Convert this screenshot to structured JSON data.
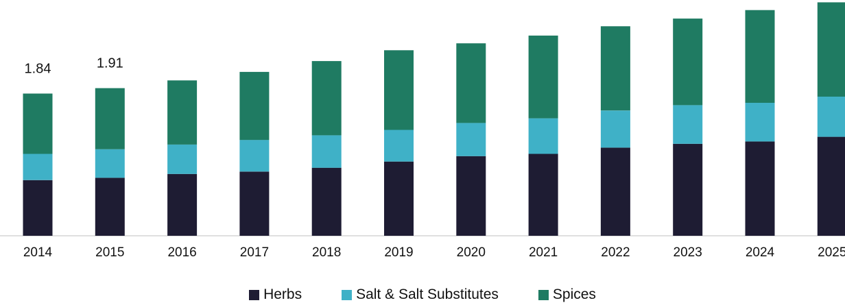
{
  "chart_data": {
    "type": "bar",
    "stacked": true,
    "title": "",
    "xlabel": "",
    "ylabel": "",
    "categories": [
      "2014",
      "2015",
      "2016",
      "2017",
      "2018",
      "2019",
      "2020",
      "2021",
      "2022",
      "2023",
      "2024",
      "2025"
    ],
    "series": [
      {
        "name": "Herbs",
        "color": "#1e1c33",
        "values": [
          0.72,
          0.75,
          0.8,
          0.83,
          0.88,
          0.96,
          1.03,
          1.06,
          1.14,
          1.19,
          1.22,
          1.28
        ]
      },
      {
        "name": "Salt & Salt Substitutes",
        "color": "#3fb1c7",
        "values": [
          0.34,
          0.37,
          0.38,
          0.41,
          0.42,
          0.41,
          0.43,
          0.46,
          0.48,
          0.5,
          0.5,
          0.52
        ]
      },
      {
        "name": "Spices",
        "color": "#1f7b62",
        "values": [
          0.78,
          0.79,
          0.83,
          0.88,
          0.96,
          1.03,
          1.03,
          1.07,
          1.09,
          1.12,
          1.2,
          1.22
        ]
      }
    ],
    "data_labels": [
      {
        "category": "2014",
        "text": "1.84"
      },
      {
        "category": "2015",
        "text": "1.91"
      }
    ],
    "ylim": [
      0,
      3.05
    ],
    "grid": false,
    "legend_position": "bottom"
  }
}
